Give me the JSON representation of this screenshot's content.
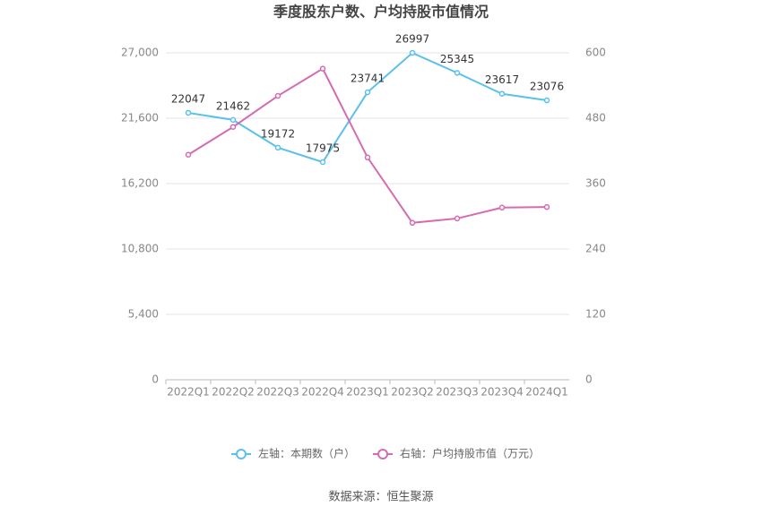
{
  "chart_data": {
    "type": "line",
    "title": "季度股东户数、户均持股市值情况",
    "categories": [
      "2022Q1",
      "2022Q2",
      "2022Q3",
      "2022Q4",
      "2023Q1",
      "2023Q2",
      "2023Q3",
      "2023Q4",
      "2024Q1"
    ],
    "series": [
      {
        "name": "左轴：本期数（户）",
        "color": "#5bc0eb",
        "values": [
          22047,
          21462,
          19172,
          17975,
          23741,
          26997,
          25345,
          23617,
          23076
        ],
        "labels": true
      },
      {
        "name": "右轴：户均持股市值（万元）",
        "color": "#d46bb3",
        "axis": "y2",
        "values": [
          413,
          464,
          521,
          571,
          408,
          288,
          296,
          316,
          317
        ]
      }
    ],
    "ylim": [
      0,
      27000
    ],
    "yticks": [
      0,
      {
        "value": 5400,
        "label": "5,400"
      },
      {
        "value": 10800,
        "label": "10,800"
      },
      {
        "value": 16200,
        "label": "16,200"
      },
      {
        "value": 21600,
        "label": "21,600"
      },
      {
        "value": 27000,
        "label": "27,000"
      }
    ],
    "y2lim": [
      0,
      600
    ],
    "y2ticks": [
      0,
      120,
      240,
      360,
      480,
      600
    ],
    "grid": true,
    "source": "数据来源：恒生聚源"
  }
}
